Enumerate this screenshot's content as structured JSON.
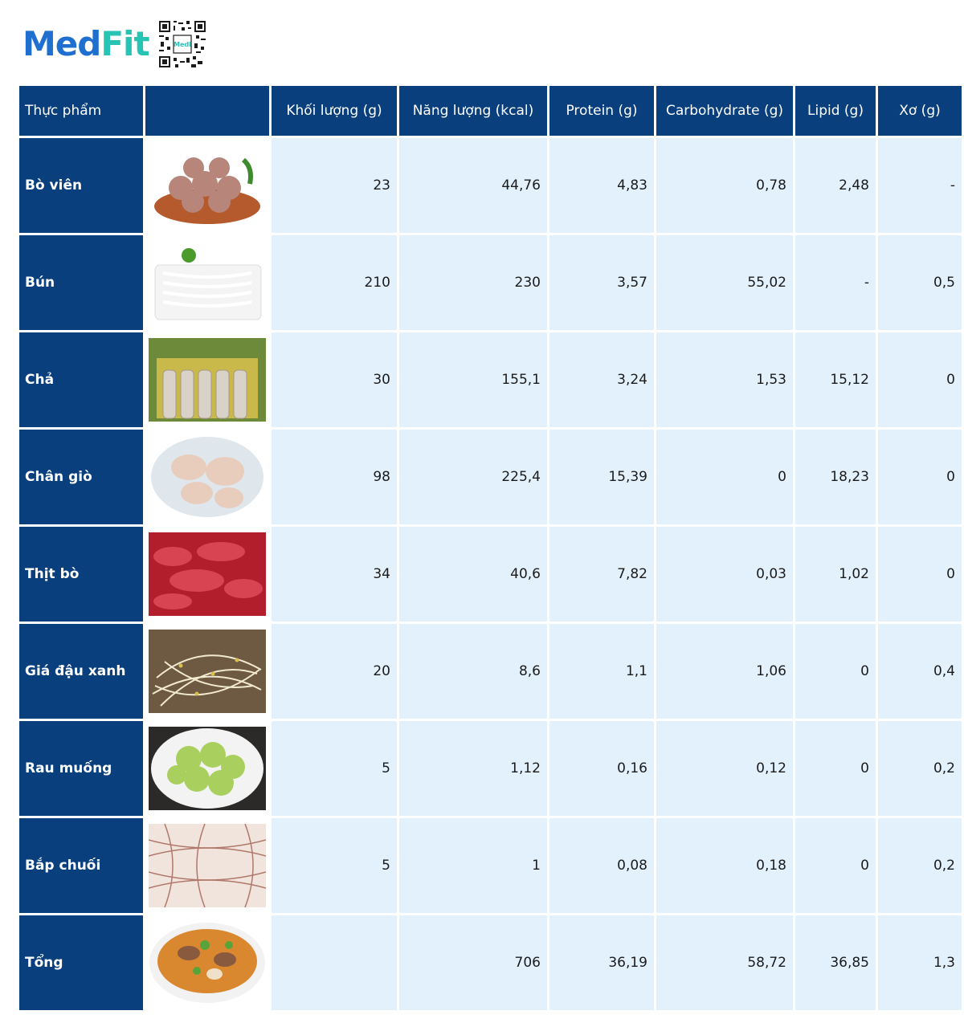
{
  "brand": {
    "part1": "Med",
    "part2": "Fit",
    "qr_label": "Medi"
  },
  "table": {
    "headers": {
      "food": "Thực phẩm",
      "image": "",
      "mass": "Khối lượng (g)",
      "energy": "Năng lượng (kcal)",
      "protein": "Protein (g)",
      "carb": "Carbohydrate (g)",
      "lipid": "Lipid (g)",
      "fiber": "Xơ (g)"
    },
    "rows": [
      {
        "name": "Bò viên",
        "image": "beef-balls-photo",
        "mass": "23",
        "energy": "44,76",
        "protein": "4,83",
        "carb": "0,78",
        "lipid": "2,48",
        "fiber": "-"
      },
      {
        "name": "Bún",
        "image": "rice-noodles-photo",
        "mass": "210",
        "energy": "230",
        "protein": "3,57",
        "carb": "55,02",
        "lipid": "-",
        "fiber": "0,5"
      },
      {
        "name": "Chả",
        "image": "pork-roll-photo",
        "mass": "30",
        "energy": "155,1",
        "protein": "3,24",
        "carb": "1,53",
        "lipid": "15,12",
        "fiber": "0"
      },
      {
        "name": "Chân giò",
        "image": "pork-knuckle-photo",
        "mass": "98",
        "energy": "225,4",
        "protein": "15,39",
        "carb": "0",
        "lipid": "18,23",
        "fiber": "0"
      },
      {
        "name": "Thịt bò",
        "image": "raw-beef-photo",
        "mass": "34",
        "energy": "40,6",
        "protein": "7,82",
        "carb": "0,03",
        "lipid": "1,02",
        "fiber": "0"
      },
      {
        "name": "Giá đậu xanh",
        "image": "bean-sprouts-photo",
        "mass": "20",
        "energy": "8,6",
        "protein": "1,1",
        "carb": "1,06",
        "lipid": "0",
        "fiber": "0,4"
      },
      {
        "name": "Rau muống",
        "image": "water-spinach-photo",
        "mass": "5",
        "energy": "1,12",
        "protein": "0,16",
        "carb": "0,12",
        "lipid": "0",
        "fiber": "0,2"
      },
      {
        "name": "Bắp chuối",
        "image": "banana-blossom-photo",
        "mass": "5",
        "energy": "1",
        "protein": "0,08",
        "carb": "0,18",
        "lipid": "0",
        "fiber": "0,2"
      },
      {
        "name": "Tổng",
        "image": "bun-bo-bowl-photo",
        "mass": "",
        "energy": "706",
        "protein": "36,19",
        "carb": "58,72",
        "lipid": "36,85",
        "fiber": "1,3"
      }
    ]
  },
  "colors": {
    "header_bg": "#0a3f7e",
    "cell_bg": "#e3f1fc",
    "brand_blue": "#1f6fd1",
    "brand_teal": "#27c4b6"
  }
}
